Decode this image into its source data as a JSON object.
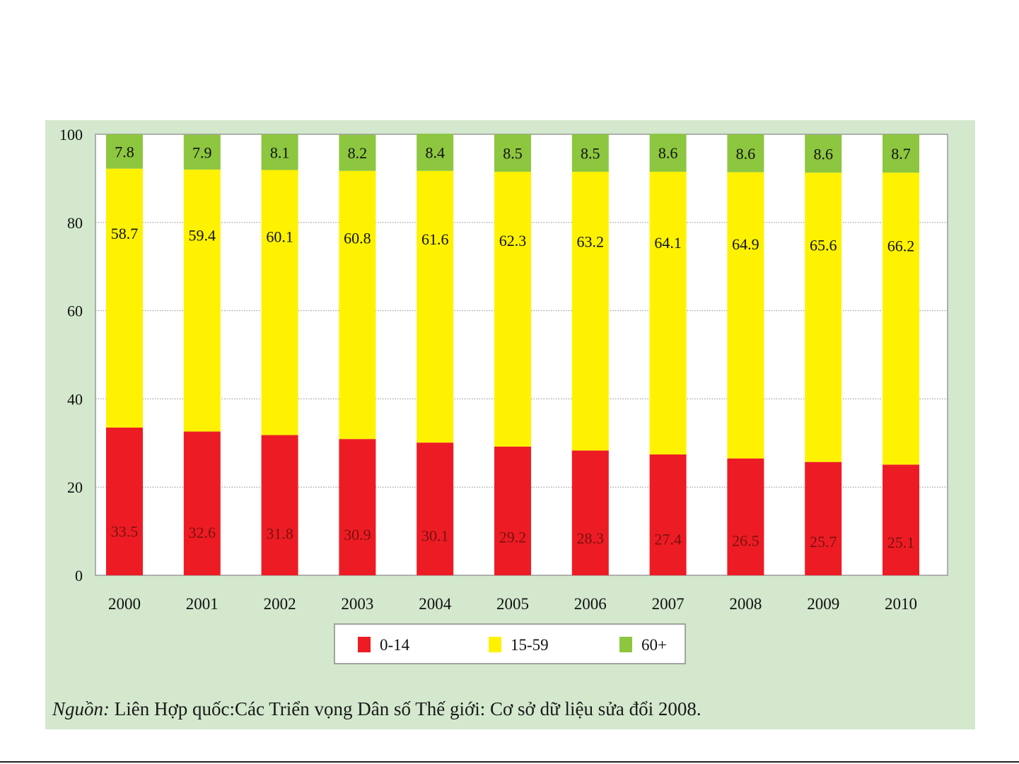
{
  "chart_data": {
    "type": "bar",
    "stacked": true,
    "categories": [
      "2000",
      "2001",
      "2002",
      "2003",
      "2004",
      "2005",
      "2006",
      "2007",
      "2008",
      "2009",
      "2010"
    ],
    "series": [
      {
        "name": "0-14",
        "color": "#ed1c24",
        "values": [
          33.5,
          32.6,
          31.8,
          30.9,
          30.1,
          29.2,
          28.3,
          27.4,
          26.5,
          25.7,
          25.1
        ]
      },
      {
        "name": "15-59",
        "color": "#fff200",
        "values": [
          58.7,
          59.4,
          60.1,
          60.8,
          61.6,
          62.3,
          63.2,
          64.1,
          64.9,
          65.6,
          66.2
        ]
      },
      {
        "name": "60+",
        "color": "#8dc63f",
        "values": [
          7.8,
          7.9,
          8.1,
          8.2,
          8.4,
          8.5,
          8.5,
          8.6,
          8.6,
          8.6,
          8.7
        ]
      }
    ],
    "ylim": [
      0,
      100
    ],
    "yticks": [
      "0",
      "20",
      "40",
      "60",
      "80",
      "100"
    ],
    "grid": true,
    "legend_position": "bottom-center"
  },
  "source": {
    "label": "Nguồn:",
    "text": " Liên Hợp quốc:Các Triển vọng Dân số Thế giới: Cơ sở dữ liệu sửa đổi 2008."
  }
}
